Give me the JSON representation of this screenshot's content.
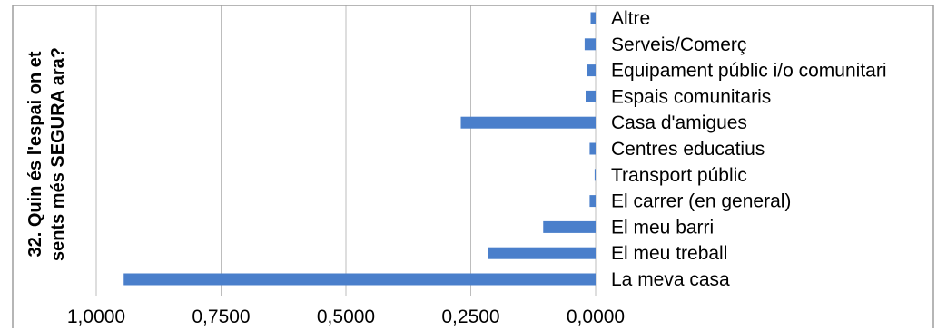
{
  "chart_data": {
    "type": "bar",
    "orientation": "horizontal",
    "x_axis_reversed": true,
    "ylabel_lines": [
      "32. Quin és l'espai on et",
      "sents més SEGURA ara?"
    ],
    "categories": [
      "Altre",
      "Serveis/Comerç",
      "Equipament públic i/o comunitari",
      "Espais comunitaris",
      "Casa d'amigues",
      "Centres educatius",
      "Transport públic",
      "El carrer (en general)",
      "El meu barri",
      "El meu treball",
      "La meva casa"
    ],
    "values": [
      0.01,
      0.022,
      0.018,
      0.02,
      0.27,
      0.012,
      0.002,
      0.012,
      0.105,
      0.215,
      0.945
    ],
    "xlim": [
      0,
      1.0
    ],
    "x_ticks": [
      1.0,
      0.75,
      0.5,
      0.25,
      0.0
    ],
    "x_tick_labels": [
      "1,0000",
      "0,7500",
      "0,5000",
      "0,2500",
      "0,0000"
    ],
    "grid": true,
    "legend": "none",
    "bar_color": "#4a7fcb",
    "grid_color": "#bdbdbd",
    "border_color": "#9e9e9e"
  }
}
